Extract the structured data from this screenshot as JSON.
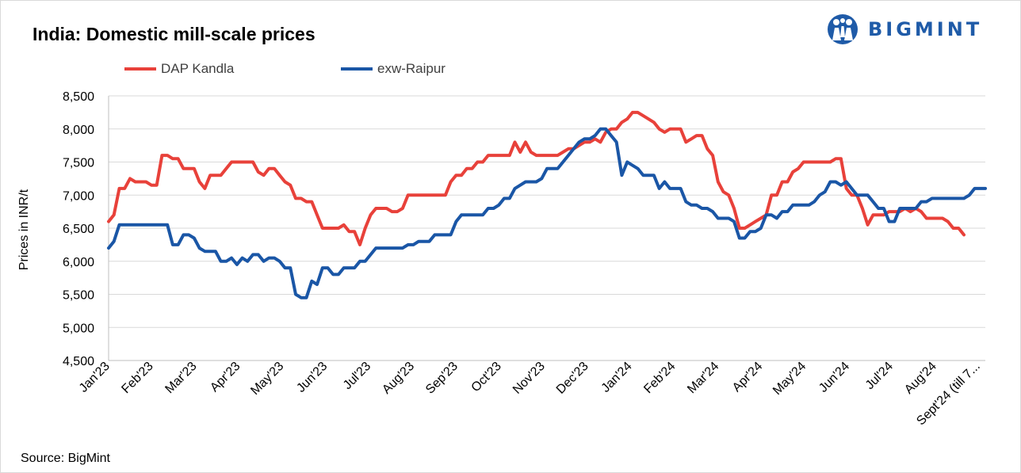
{
  "title": "India: Domestic mill-scale prices",
  "brand": {
    "name": "BIGMINT",
    "color": "#1f5ba8",
    "icon": "bigmint-logo-icon"
  },
  "source": "Source: BigMint",
  "chart_data": {
    "type": "line",
    "title": "India: Domestic mill-scale prices",
    "xlabel": "",
    "ylabel": "Prices in INR/t",
    "ylim": [
      4500,
      8500
    ],
    "ytick_step": 500,
    "ytick_labels": [
      "4,500",
      "5,000",
      "5,500",
      "6,000",
      "6,500",
      "7,000",
      "7,500",
      "8,000",
      "8,500"
    ],
    "grid": "horizontal",
    "legend_position": "top-left",
    "x_count": 88,
    "x_tick_labels": [
      "Jan'23",
      "Feb'23",
      "Mar'23",
      "Apr'23",
      "May'23",
      "Jun'23",
      "Jul'23",
      "Aug'23",
      "Sep'23",
      "Oct'23",
      "Nov'23",
      "Dec'23",
      "Jan'24",
      "Feb'24",
      "Mar'24",
      "Apr'24",
      "May'24",
      "Jun'24",
      "Jul'24",
      "Aug'24",
      "Sept'24 (till 7..."
    ],
    "series": [
      {
        "name": "DAP Kandla",
        "color": "#e8413a",
        "values": [
          6600,
          6700,
          7100,
          7100,
          7250,
          7200,
          7200,
          7200,
          7150,
          7150,
          7600,
          7600,
          7550,
          7550,
          7400,
          7400,
          7400,
          7200,
          7100,
          7300,
          7300,
          7300,
          7400,
          7500,
          7500,
          7500,
          7500,
          7500,
          7350,
          7300,
          7400,
          7400,
          7300,
          7200,
          7150,
          6950,
          6950,
          6900,
          6900,
          6700,
          6500,
          6500,
          6500,
          6500,
          6550,
          6450,
          6450,
          6250,
          6500,
          6700,
          6800,
          6800,
          6800,
          6750,
          6750,
          6800,
          7000,
          7000,
          7000,
          7000,
          7000,
          7000,
          7000,
          7000,
          7200,
          7300,
          7300,
          7400,
          7400,
          7500,
          7500,
          7600,
          7600,
          7600,
          7600,
          7600,
          7800,
          7650,
          7800,
          7650,
          7600,
          7600,
          7600,
          7600,
          7600,
          7650,
          7700,
          7700
        ]
      },
      {
        "name": "exw-Raipur",
        "color": "#1a56a6",
        "values": [
          6200,
          6300,
          6550,
          6550,
          6550,
          6550,
          6550,
          6550,
          6550,
          6550,
          6550,
          6550,
          6250,
          6250,
          6400,
          6400,
          6350,
          6200,
          6150,
          6150,
          6150,
          6000,
          6000,
          6050,
          5950,
          6050,
          6000,
          6100,
          6100,
          6000,
          6050,
          6050,
          6000,
          5900,
          5900,
          5500,
          5450,
          5450,
          5700,
          5650,
          5900,
          5900,
          5800,
          5800,
          5900,
          5900,
          5900,
          6000,
          6000,
          6100,
          6200,
          6200,
          6200,
          6200,
          6200,
          6200,
          6250,
          6250,
          6300,
          6300,
          6300,
          6400,
          6400,
          6400,
          6400,
          6600,
          6700,
          6700,
          6700,
          6700,
          6700,
          6800,
          6800,
          6850,
          6950,
          6950,
          7100,
          7150,
          7200,
          7200,
          7200,
          7250,
          7400,
          7400,
          7400,
          7500,
          7600,
          7700
        ]
      }
    ],
    "continuation_points": {
      "DAP Kandla": [
        7750,
        7800,
        7800,
        7850,
        7800,
        7950,
        8000,
        8000,
        8100,
        8150,
        8250,
        8250,
        8200,
        8150,
        8100,
        8000,
        7950,
        8000,
        8000,
        8000,
        7800,
        7850,
        7900,
        7900,
        7700,
        7600,
        7200,
        7050,
        7000,
        6800,
        6500,
        6500,
        6550,
        6600,
        6650,
        6700,
        7000,
        7000,
        7200,
        7200,
        7350,
        7400,
        7500,
        7500,
        7500,
        7500,
        7500,
        7500,
        7550,
        7550,
        7100,
        7000,
        7000,
        6800,
        6550,
        6700,
        6700,
        6700,
        6750,
        6750,
        6750,
        6800,
        6750,
        6800,
        6750,
        6650,
        6650,
        6650,
        6650,
        6600,
        6500,
        6500,
        6400
      ],
      "exw-Raipur": [
        7800,
        7850,
        7850,
        7900,
        8000,
        8000,
        7900,
        7800,
        7300,
        7500,
        7450,
        7400,
        7300,
        7300,
        7300,
        7100,
        7200,
        7100,
        7100,
        7100,
        6900,
        6850,
        6850,
        6800,
        6800,
        6750,
        6650,
        6650,
        6650,
        6600,
        6350,
        6350,
        6450,
        6450,
        6500,
        6700,
        6700,
        6650,
        6750,
        6750,
        6850,
        6850,
        6850,
        6850,
        6900,
        7000,
        7050,
        7200,
        7200,
        7150,
        7200,
        7100,
        7000,
        7000,
        7000,
        6900,
        6800,
        6800,
        6600,
        6600,
        6800,
        6800,
        6800,
        6800,
        6900,
        6900,
        6950,
        6950,
        6950,
        6950,
        6950,
        6950,
        6950,
        7000,
        7100,
        7100,
        7100
      ]
    }
  }
}
